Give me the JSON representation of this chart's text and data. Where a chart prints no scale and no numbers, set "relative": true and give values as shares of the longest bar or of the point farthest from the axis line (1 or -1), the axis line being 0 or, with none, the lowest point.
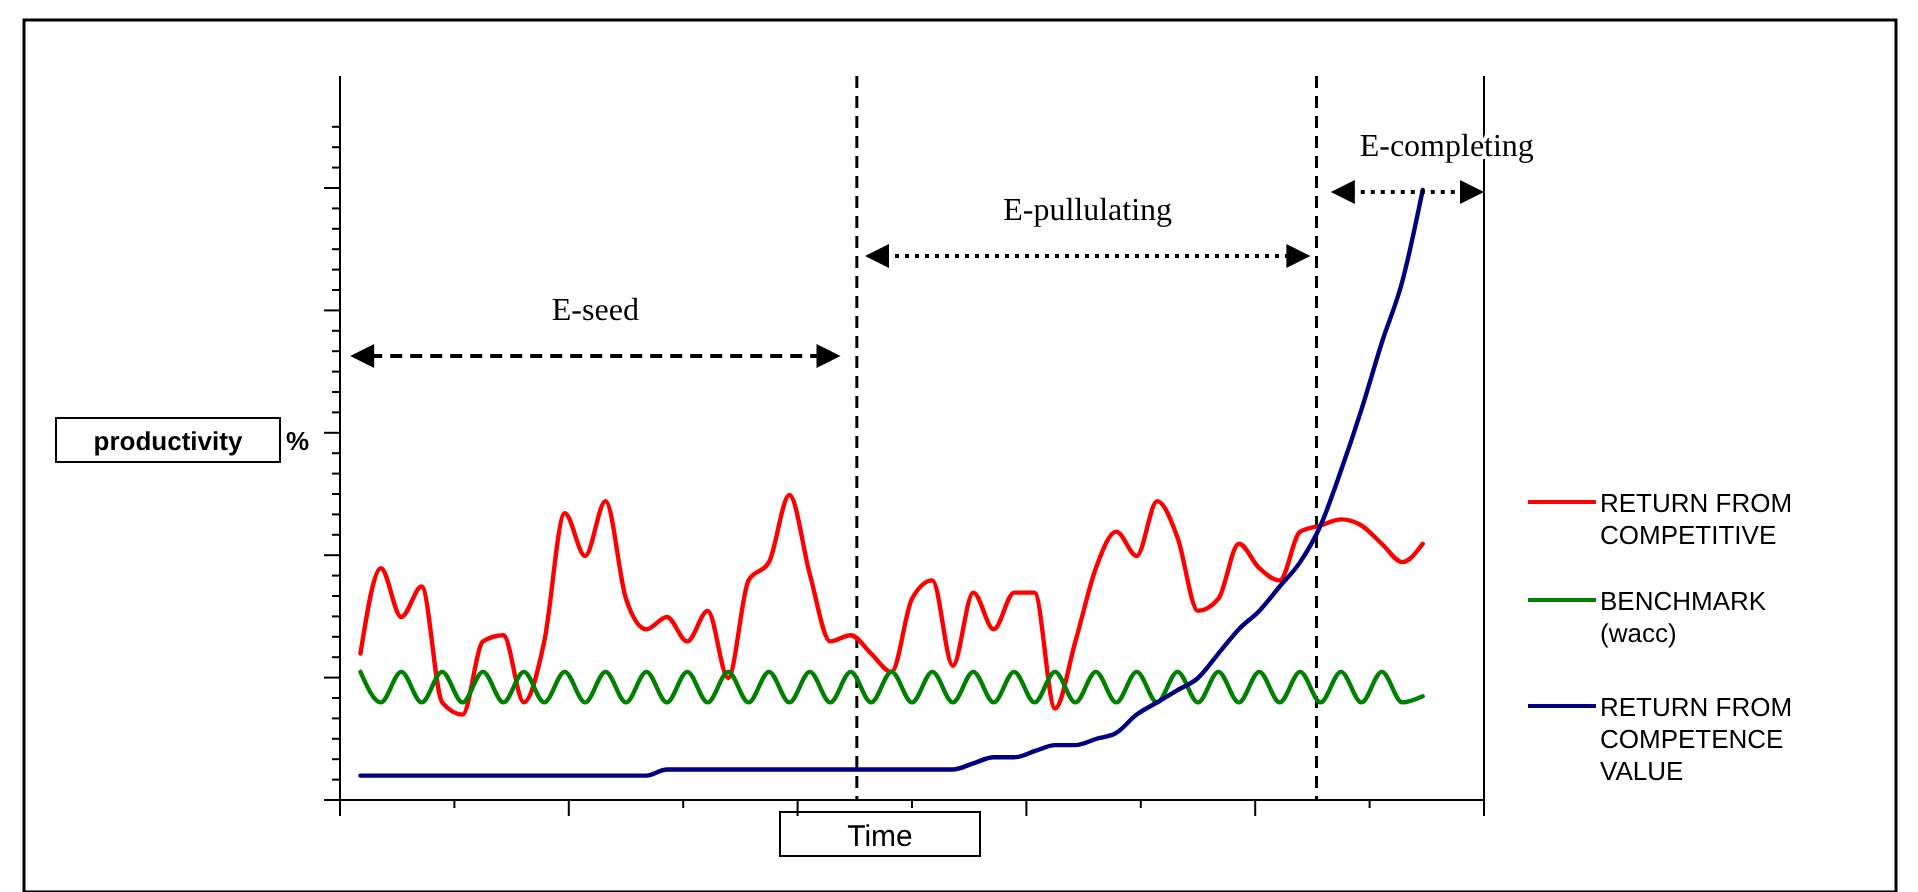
{
  "chart_data": {
    "type": "line",
    "relative": true,
    "xlabel": "Time",
    "ylabel": "productivity %",
    "legend": "right",
    "grid": false,
    "marker": "none",
    "line_style": "solid",
    "categories": [
      null,
      null,
      null,
      null,
      null,
      null,
      null,
      null,
      null,
      null,
      null,
      null,
      null,
      null,
      null,
      null,
      null,
      null,
      null,
      null,
      null,
      null,
      null,
      null,
      null,
      null,
      null,
      null,
      null,
      null,
      null,
      null,
      null,
      null,
      null,
      null,
      null,
      null,
      null,
      null,
      null,
      null,
      null,
      null,
      null,
      null,
      null,
      null,
      null,
      null,
      null,
      null,
      null,
      null,
      null,
      null,
      null
    ],
    "series": [
      {
        "name": "RETURN FROM COMPETITIVE",
        "color": "#ff0000",
        "values": [
          null,
          0.24,
          0.38,
          0.3,
          0.35,
          0.16,
          0.14,
          0.26,
          0.27,
          0.16,
          0.26,
          0.47,
          0.4,
          0.49,
          0.33,
          0.28,
          0.3,
          0.26,
          0.31,
          0.2,
          0.36,
          0.39,
          0.5,
          0.37,
          0.26,
          0.27,
          0.24,
          0.21,
          0.33,
          0.36,
          0.22,
          0.34,
          0.28,
          0.34,
          0.34,
          0.15,
          0.26,
          0.38,
          0.44,
          0.4,
          0.49,
          0.43,
          0.31,
          0.33,
          0.42,
          0.38,
          0.36,
          0.44,
          0.45,
          0.46,
          0.45,
          0.42,
          0.39,
          0.42,
          null,
          null,
          null
        ]
      },
      {
        "name": "BENCHMARK (wacc)",
        "color": "#008000",
        "values": [
          null,
          0.21,
          0.16,
          0.21,
          0.16,
          0.21,
          0.16,
          0.21,
          0.16,
          0.21,
          0.16,
          0.21,
          0.16,
          0.21,
          0.16,
          0.21,
          0.16,
          0.21,
          0.16,
          0.21,
          0.16,
          0.21,
          0.16,
          0.21,
          0.16,
          0.21,
          0.16,
          0.21,
          0.16,
          0.21,
          0.16,
          0.21,
          0.16,
          0.21,
          0.16,
          0.21,
          0.16,
          0.21,
          0.16,
          0.21,
          0.16,
          0.21,
          0.16,
          0.21,
          0.16,
          0.21,
          0.16,
          0.21,
          0.16,
          0.21,
          0.16,
          0.21,
          0.16,
          0.17,
          null,
          null,
          null
        ]
      },
      {
        "name": "RETURN FROM COMPETENCE VALUE",
        "color": "#000080",
        "values": [
          null,
          0.04,
          0.04,
          0.04,
          0.04,
          0.04,
          0.04,
          0.04,
          0.04,
          0.04,
          0.04,
          0.04,
          0.04,
          0.04,
          0.04,
          0.04,
          0.05,
          0.05,
          0.05,
          0.05,
          0.05,
          0.05,
          0.05,
          0.05,
          0.05,
          0.05,
          0.05,
          0.05,
          0.05,
          0.05,
          0.05,
          0.06,
          0.07,
          0.07,
          0.08,
          0.09,
          0.09,
          0.1,
          0.11,
          0.14,
          0.16,
          0.18,
          0.2,
          0.24,
          0.28,
          0.31,
          0.35,
          0.39,
          0.45,
          0.54,
          0.64,
          0.75,
          0.85,
          1,
          null,
          null,
          null
        ]
      }
    ],
    "annotations": [
      "E-seed",
      "E-pullulating",
      "E-completing"
    ]
  }
}
